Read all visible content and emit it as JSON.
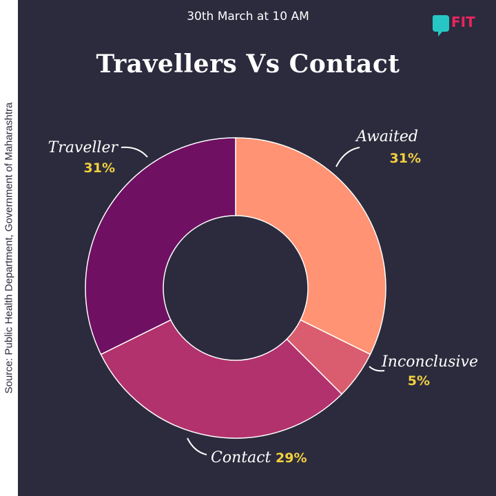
{
  "header": {
    "subtitle": "30th March at 10 AM",
    "title": "Travellers Vs Contact",
    "logo_text": "FIT"
  },
  "source": "Source: Public Health Department, Government of Maharashtra",
  "colors": {
    "background": "#2c2b3d",
    "percent_label": "#f3d03e",
    "logo_accent": "#26c6c4",
    "logo_text": "#e8255f"
  },
  "chart_data": {
    "type": "pie",
    "style": "donut",
    "title": "Travellers Vs Contact",
    "start_angle_deg": 0,
    "slices": [
      {
        "name": "Awaited",
        "label": "31%",
        "value": 31,
        "color": "#ff9373"
      },
      {
        "name": "Inconclusive",
        "label": "5%",
        "value": 5,
        "color": "#d95d6e"
      },
      {
        "name": "Contact",
        "label": "29%",
        "value": 29,
        "color": "#b2326d"
      },
      {
        "name": "Traveller",
        "label": "31%",
        "value": 31,
        "color": "#6f1062"
      }
    ]
  }
}
